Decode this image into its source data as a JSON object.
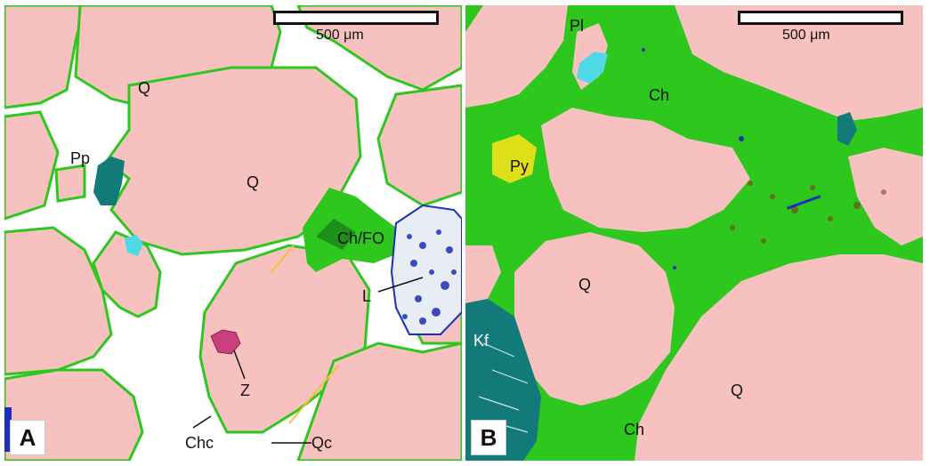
{
  "panel_a": {
    "letter": "A",
    "scale_text": "500 μm",
    "labels": {
      "q1": "Q",
      "q2": "Q",
      "pp": "Pp",
      "chfo": "Ch/FO",
      "l": "L",
      "z": "Z",
      "chc": "Chc",
      "qc": "Qc"
    }
  },
  "panel_b": {
    "letter": "B",
    "scale_text": "500 μm",
    "labels": {
      "pl": "Pl",
      "ch1": "Ch",
      "py": "Py",
      "q1": "Q",
      "kf": "Kf",
      "q2": "Q",
      "ch2": "Ch"
    }
  },
  "colors": {
    "quartz": "#f7c1c0",
    "chlorite": "#2ec71e",
    "pore": "#ffffff",
    "feldspar_k": "#127a78",
    "plagioclase": "#4fd9e6",
    "pyrite": "#f2e21a",
    "zircon": "#c8407c",
    "lithic_blue": "#1b2fb8"
  }
}
